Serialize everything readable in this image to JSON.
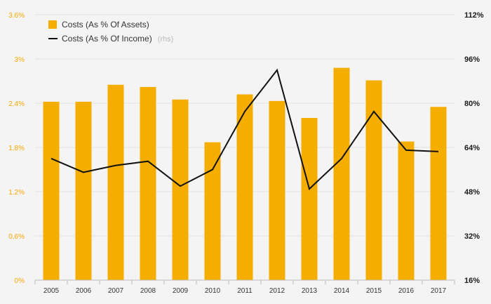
{
  "chart_data": {
    "type": "bar",
    "categories": [
      "2005",
      "2006",
      "2007",
      "2008",
      "2009",
      "2010",
      "2011",
      "2012",
      "2013",
      "2014",
      "2015",
      "2016",
      "2017"
    ],
    "series": [
      {
        "name": "Costs (As % Of Assets)",
        "type": "bar",
        "axis": "left",
        "color": "#f5ad00",
        "values": [
          2.42,
          2.42,
          2.65,
          2.62,
          2.45,
          1.87,
          2.52,
          2.43,
          2.2,
          2.88,
          2.71,
          1.88,
          2.35
        ]
      },
      {
        "name": "Costs (As % Of Income)",
        "name_suffix": "(rhs)",
        "type": "line",
        "axis": "right",
        "color": "#111111",
        "values": [
          60.0,
          55.0,
          57.5,
          59.0,
          50.0,
          56.0,
          77.0,
          92.0,
          49.0,
          60.0,
          77.0,
          63.0,
          62.5
        ]
      }
    ],
    "y_left": {
      "ticks": [
        "0%",
        "0.6%",
        "1.2%",
        "1.8%",
        "2.4%",
        "3%",
        "3.6%"
      ],
      "tick_values": [
        0,
        0.6,
        1.2,
        1.8,
        2.4,
        3.0,
        3.6
      ],
      "range": [
        0,
        3.6
      ],
      "color": "#f5a800"
    },
    "y_right": {
      "ticks": [
        "16%",
        "32%",
        "48%",
        "64%",
        "80%",
        "96%",
        "112%"
      ],
      "tick_values": [
        16,
        32,
        48,
        64,
        80,
        96,
        112
      ],
      "range": [
        16,
        112
      ]
    },
    "grid": true,
    "legend_position": "top-left"
  }
}
